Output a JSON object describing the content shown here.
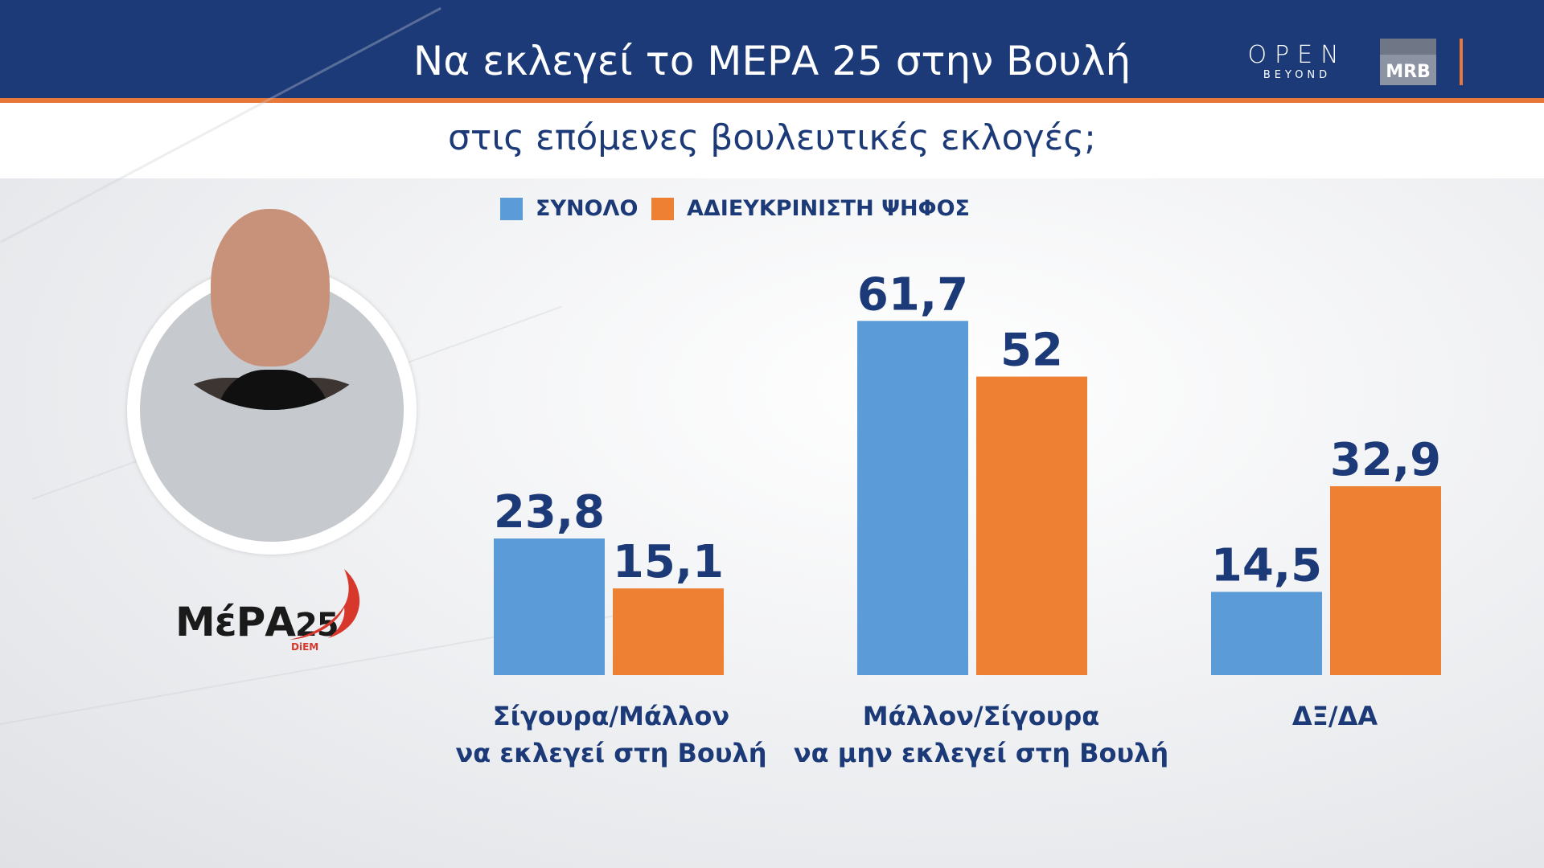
{
  "header": {
    "title": "Να εκλεγεί το ΜΕΡΑ 25 στην Βουλή",
    "subtitle": "στις επόμενες βουλευτικές εκλογές;"
  },
  "logos": {
    "channel": "OPEN",
    "channel_tagline": "BEYOND",
    "pollster": "MRB"
  },
  "party": {
    "name": "ΜέΡΑ",
    "number": "25",
    "tag": "DiEM"
  },
  "colors": {
    "header_bg": "#1c3a78",
    "accent": "#e8773a",
    "series_total": "#5b9bd8",
    "series_undecided": "#ee8033",
    "text_dark": "#1c3a78"
  },
  "chart_data": {
    "type": "bar",
    "categories": [
      [
        "Σίγουρα/Μάλλον",
        "να εκλεγεί στη Βουλή"
      ],
      [
        "Μάλλον/Σίγουρα",
        "να μην εκλεγεί στη Βουλή"
      ],
      [
        "ΔΞ/ΔΑ"
      ]
    ],
    "series": [
      {
        "name": "ΣΥΝΟΛΟ",
        "color": "#5b9bd8",
        "values": [
          23.8,
          61.7,
          14.5
        ],
        "labels": [
          "23,8",
          "61,7",
          "14,5"
        ]
      },
      {
        "name": "ΑΔΙΕΥΚΡΙΝΙΣΤΗ ΨΗΦΟΣ",
        "color": "#ee8033",
        "values": [
          15.1,
          52,
          32.9
        ],
        "labels": [
          "15,1",
          "52",
          "32,9"
        ]
      }
    ],
    "ylim": [
      0,
      70
    ],
    "grid": false,
    "legend_position": "top"
  }
}
